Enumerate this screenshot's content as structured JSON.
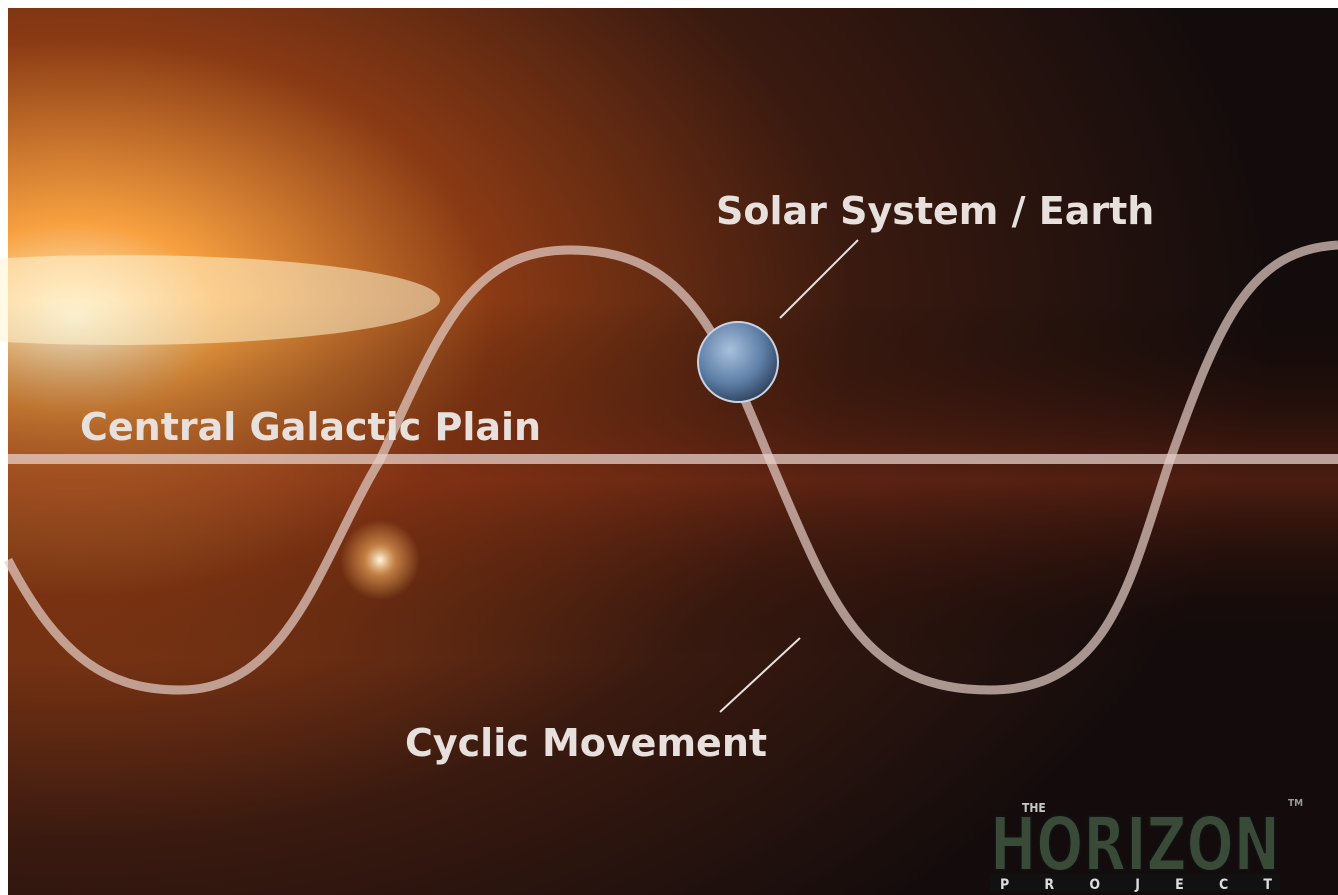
{
  "labels": {
    "earth": "Solar System / Earth",
    "plane": "Central Galactic Plain",
    "movement": "Cyclic Movement"
  },
  "logo": {
    "the": "THE",
    "name": "HORIZON",
    "sub": "PROJECT",
    "tm": "TM"
  }
}
